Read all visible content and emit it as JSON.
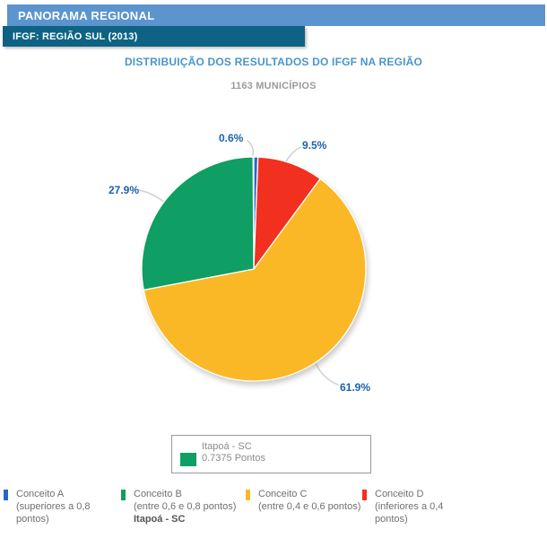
{
  "header": {
    "title": "PANORAMA REGIONAL",
    "subtitle": "IFGF: REGIÃO SUL (2013)"
  },
  "colors": {
    "header_bar": "#5b94ce",
    "subheader_bar": "#0e6384",
    "title_text": "#4a94cc",
    "subtitle_text": "#9b9b9b",
    "label_text": "#1b62ab",
    "conceito_a": "#2b65c8",
    "conceito_b": "#0f9e63",
    "conceito_c": "#fbb826",
    "conceito_d": "#f2301f"
  },
  "chart_data": {
    "type": "pie",
    "title": "DISTRIBUIÇÃO DOS RESULTADOS DO IFGF NA REGIÃO",
    "subtitle": "1163 MUNICÍPIOS",
    "total_municipios": 1163,
    "unit": "%",
    "start_angle_deg": 0,
    "direction": "clockwise",
    "slices": [
      {
        "name": "Conceito A",
        "pct": 0.6,
        "display": "0.6%",
        "color": "#2b65c8"
      },
      {
        "name": "Conceito D",
        "pct": 9.5,
        "display": "9.5%",
        "color": "#f2301f"
      },
      {
        "name": "Conceito C",
        "pct": 61.9,
        "display": "61.9%",
        "color": "#fbb826"
      },
      {
        "name": "Conceito B",
        "pct": 27.9,
        "display": "27.9%",
        "color": "#0f9e63"
      }
    ],
    "highlighted_item": {
      "name": "Itapoá - SC",
      "value": "0.7375 Pontos",
      "conceito": "Conceito B"
    }
  },
  "tooltip": {
    "line1": "Itapoá - SC",
    "line2": "0.7375 Pontos",
    "swatch_color": "#0f9e63"
  },
  "legend": [
    {
      "label": "Conceito A",
      "line2": "(superiores a 0,8",
      "line3": "pontos)",
      "bold_line": "",
      "color": "#2b65c8"
    },
    {
      "label": "Conceito B",
      "line2": "(entre 0,6 e 0,8 pontos)",
      "line3": "",
      "bold_line": "Itapoá - SC",
      "color": "#0f9e63"
    },
    {
      "label": "Conceito C",
      "line2": "(entre 0,4 e 0,6 pontos)",
      "line3": "",
      "bold_line": "",
      "color": "#fbb826"
    },
    {
      "label": "Conceito D",
      "line2": "(inferiores a 0,4",
      "line3": "pontos)",
      "bold_line": "",
      "color": "#f2301f"
    }
  ]
}
